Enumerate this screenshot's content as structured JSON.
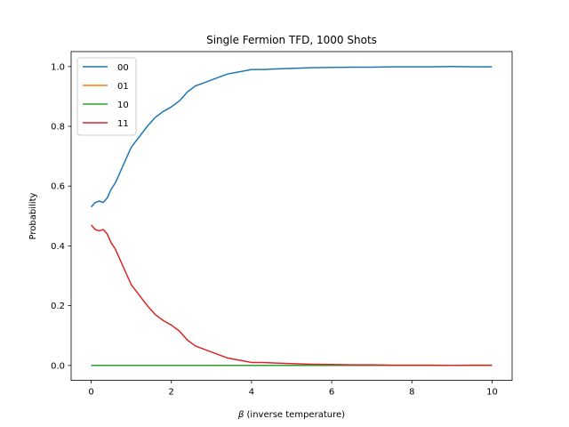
{
  "chart_data": {
    "type": "line",
    "title": "Single Fermion TFD, 1000 Shots",
    "xlabel_symbol": "β",
    "xlabel_rest": " (inverse temperature)",
    "ylabel": "Probability",
    "xlim": [
      -0.5,
      10.5
    ],
    "ylim": [
      -0.05,
      1.05
    ],
    "xticks": [
      0,
      2,
      4,
      6,
      8,
      10
    ],
    "xtick_labels": [
      "0",
      "2",
      "4",
      "6",
      "8",
      "10"
    ],
    "yticks": [
      0.0,
      0.2,
      0.4,
      0.6,
      0.8,
      1.0
    ],
    "ytick_labels": [
      "0.0",
      "0.2",
      "0.4",
      "0.6",
      "0.8",
      "1.0"
    ],
    "grid": false,
    "legend_position": "top-left",
    "series": [
      {
        "name": "00",
        "color": "#1f77b4",
        "x": [
          0,
          0.1,
          0.2,
          0.3,
          0.4,
          0.5,
          0.6,
          0.7,
          0.8,
          0.9,
          1.0,
          1.2,
          1.4,
          1.6,
          1.8,
          2.0,
          2.2,
          2.4,
          2.6,
          2.8,
          3.0,
          3.2,
          3.4,
          3.6,
          3.8,
          4.0,
          4.3,
          4.6,
          5.0,
          5.5,
          6.0,
          6.5,
          7.0,
          7.5,
          8.0,
          8.5,
          9.0,
          9.5,
          10.0
        ],
        "values": [
          0.53,
          0.545,
          0.55,
          0.545,
          0.56,
          0.59,
          0.61,
          0.64,
          0.67,
          0.7,
          0.73,
          0.765,
          0.8,
          0.83,
          0.85,
          0.865,
          0.885,
          0.915,
          0.935,
          0.945,
          0.955,
          0.965,
          0.975,
          0.98,
          0.985,
          0.99,
          0.99,
          0.992,
          0.994,
          0.996,
          0.997,
          0.998,
          0.998,
          0.999,
          0.999,
          0.999,
          1.0,
          0.999,
          0.999
        ]
      },
      {
        "name": "01",
        "color": "#ff7f0e",
        "x": [
          0,
          10
        ],
        "values": [
          0.0,
          0.0
        ]
      },
      {
        "name": "10",
        "color": "#2ca02c",
        "x": [
          0,
          10
        ],
        "values": [
          0.0,
          0.0
        ]
      },
      {
        "name": "11",
        "color": "#d62728",
        "x": [
          0,
          0.1,
          0.2,
          0.3,
          0.4,
          0.5,
          0.6,
          0.7,
          0.8,
          0.9,
          1.0,
          1.2,
          1.4,
          1.6,
          1.8,
          2.0,
          2.2,
          2.4,
          2.6,
          2.8,
          3.0,
          3.2,
          3.4,
          3.6,
          3.8,
          4.0,
          4.3,
          4.6,
          5.0,
          5.5,
          6.0,
          6.5,
          7.0,
          7.5,
          8.0,
          8.5,
          9.0,
          9.5,
          10.0
        ],
        "values": [
          0.47,
          0.455,
          0.45,
          0.455,
          0.44,
          0.41,
          0.39,
          0.36,
          0.33,
          0.3,
          0.27,
          0.235,
          0.2,
          0.17,
          0.15,
          0.135,
          0.115,
          0.085,
          0.065,
          0.055,
          0.045,
          0.035,
          0.025,
          0.02,
          0.015,
          0.01,
          0.01,
          0.008,
          0.006,
          0.004,
          0.003,
          0.002,
          0.002,
          0.001,
          0.001,
          0.001,
          0.0,
          0.001,
          0.001
        ]
      }
    ]
  }
}
